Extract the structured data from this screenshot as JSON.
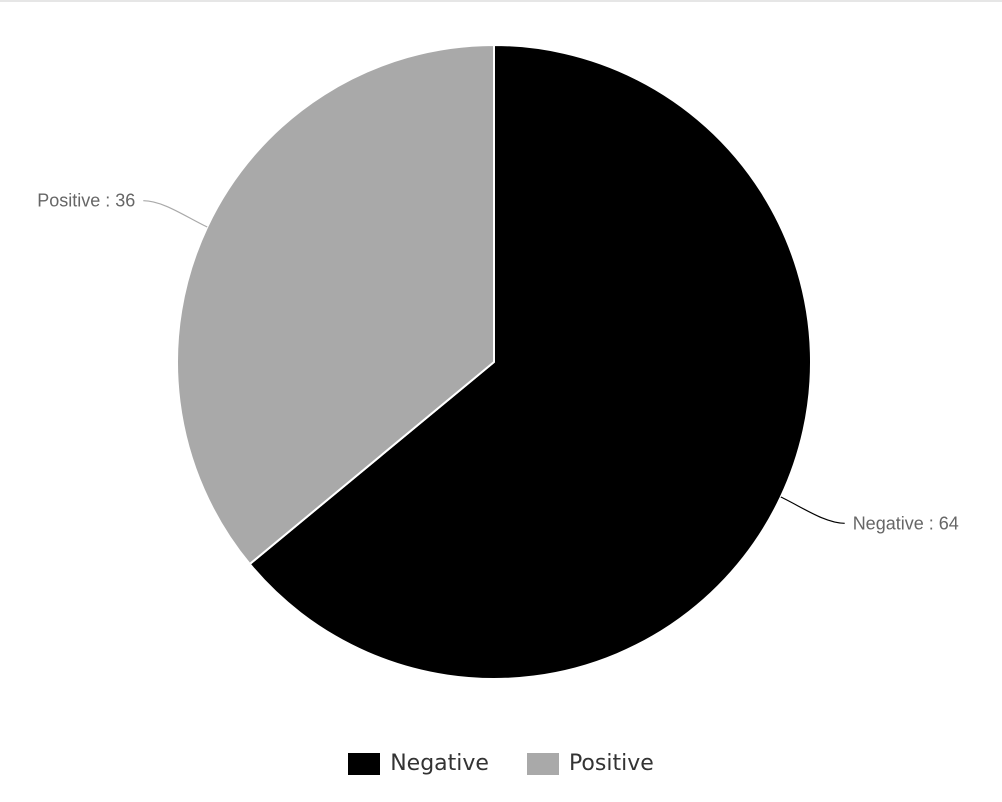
{
  "chart_data": {
    "type": "pie",
    "title": "",
    "slices": [
      {
        "name": "Negative",
        "value": 64,
        "color": "#000000",
        "label": "Negative : 64"
      },
      {
        "name": "Positive",
        "value": 36,
        "color": "#a9a9a9",
        "label": "Positive : 36"
      }
    ],
    "start_angle": "12 o'clock",
    "direction": "clockwise",
    "legend_position": "bottom",
    "border_color": "#ffffff",
    "label_color": "#666666"
  },
  "legend": {
    "items": [
      {
        "label": "Negative",
        "color": "#000000"
      },
      {
        "label": "Positive",
        "color": "#a9a9a9"
      }
    ]
  }
}
